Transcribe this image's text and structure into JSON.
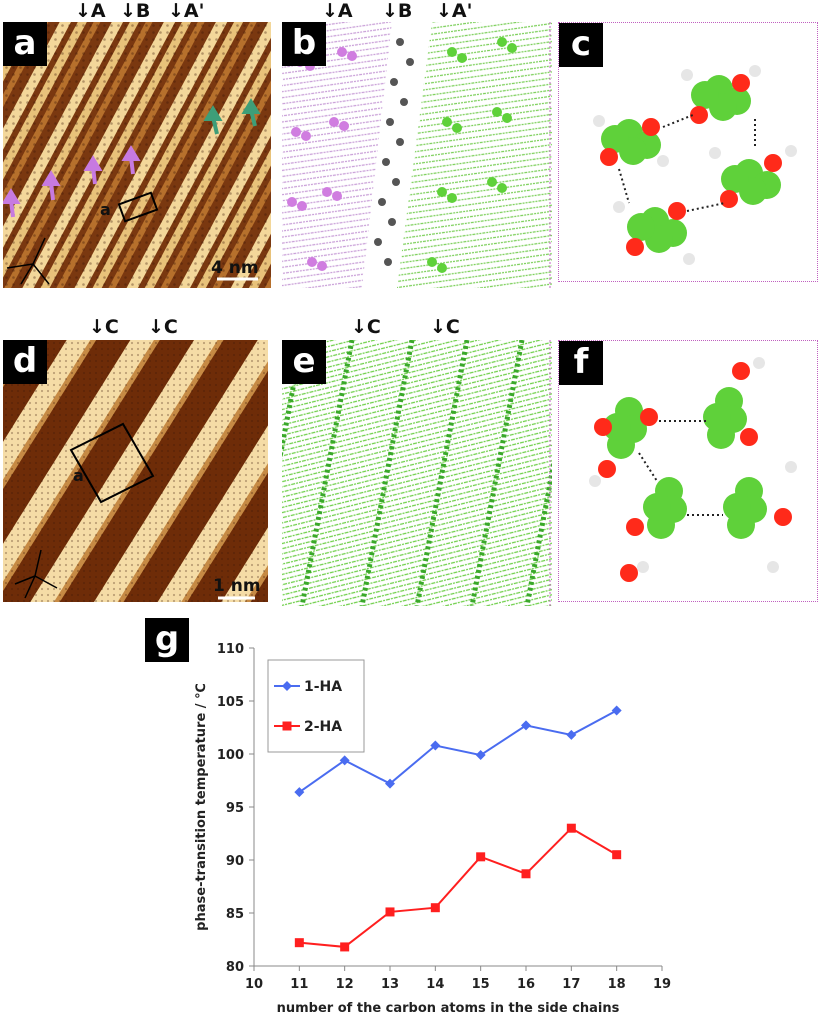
{
  "panels": {
    "a": {
      "label": "a",
      "markers": [
        "A",
        "B",
        "A'"
      ],
      "lattice": "a",
      "scale": "4 nm"
    },
    "b": {
      "label": "b",
      "markers": [
        "A",
        "B",
        "A'"
      ]
    },
    "c": {
      "label": "c"
    },
    "d": {
      "label": "d",
      "markers": [
        "C",
        "C"
      ],
      "lattice": "a",
      "scale": "1 nm"
    },
    "e": {
      "label": "e",
      "markers": [
        "C",
        "C"
      ]
    },
    "f": {
      "label": "f"
    },
    "g": {
      "label": "g"
    }
  },
  "colors": {
    "stm_dark": "#6b2e0a",
    "stm_light": "#f2d79a",
    "pink": "#d98be0",
    "green": "#5fd13a",
    "gray": "#555555",
    "red": "#ff1f1f",
    "blue": "#4a6cf0",
    "frame_pink": "#c060c0"
  },
  "chart_data": {
    "type": "line",
    "xlabel": "number of the carbon atoms in the side chains",
    "ylabel": "phase-transition temperature / ℃",
    "xlim": [
      10,
      19
    ],
    "ylim": [
      80,
      110
    ],
    "xticks": [
      "10",
      "11",
      "12",
      "13",
      "14",
      "15",
      "16",
      "17",
      "18",
      "19"
    ],
    "yticks": [
      "80",
      "85",
      "90",
      "95",
      "100",
      "105",
      "110"
    ],
    "legend_position": "top-left",
    "series": [
      {
        "name": "1-HA",
        "color": "#4a6cf0",
        "marker": "diamond",
        "x": [
          11,
          12,
          13,
          14,
          15,
          16,
          17,
          18
        ],
        "y": [
          96.4,
          99.4,
          97.2,
          100.8,
          99.9,
          102.7,
          101.8,
          104.1
        ]
      },
      {
        "name": "2-HA",
        "color": "#ff1f1f",
        "marker": "square",
        "x": [
          11,
          12,
          13,
          14,
          15,
          16,
          17,
          18
        ],
        "y": [
          82.2,
          81.8,
          85.1,
          85.5,
          90.3,
          88.7,
          93.0,
          90.5
        ]
      }
    ]
  }
}
